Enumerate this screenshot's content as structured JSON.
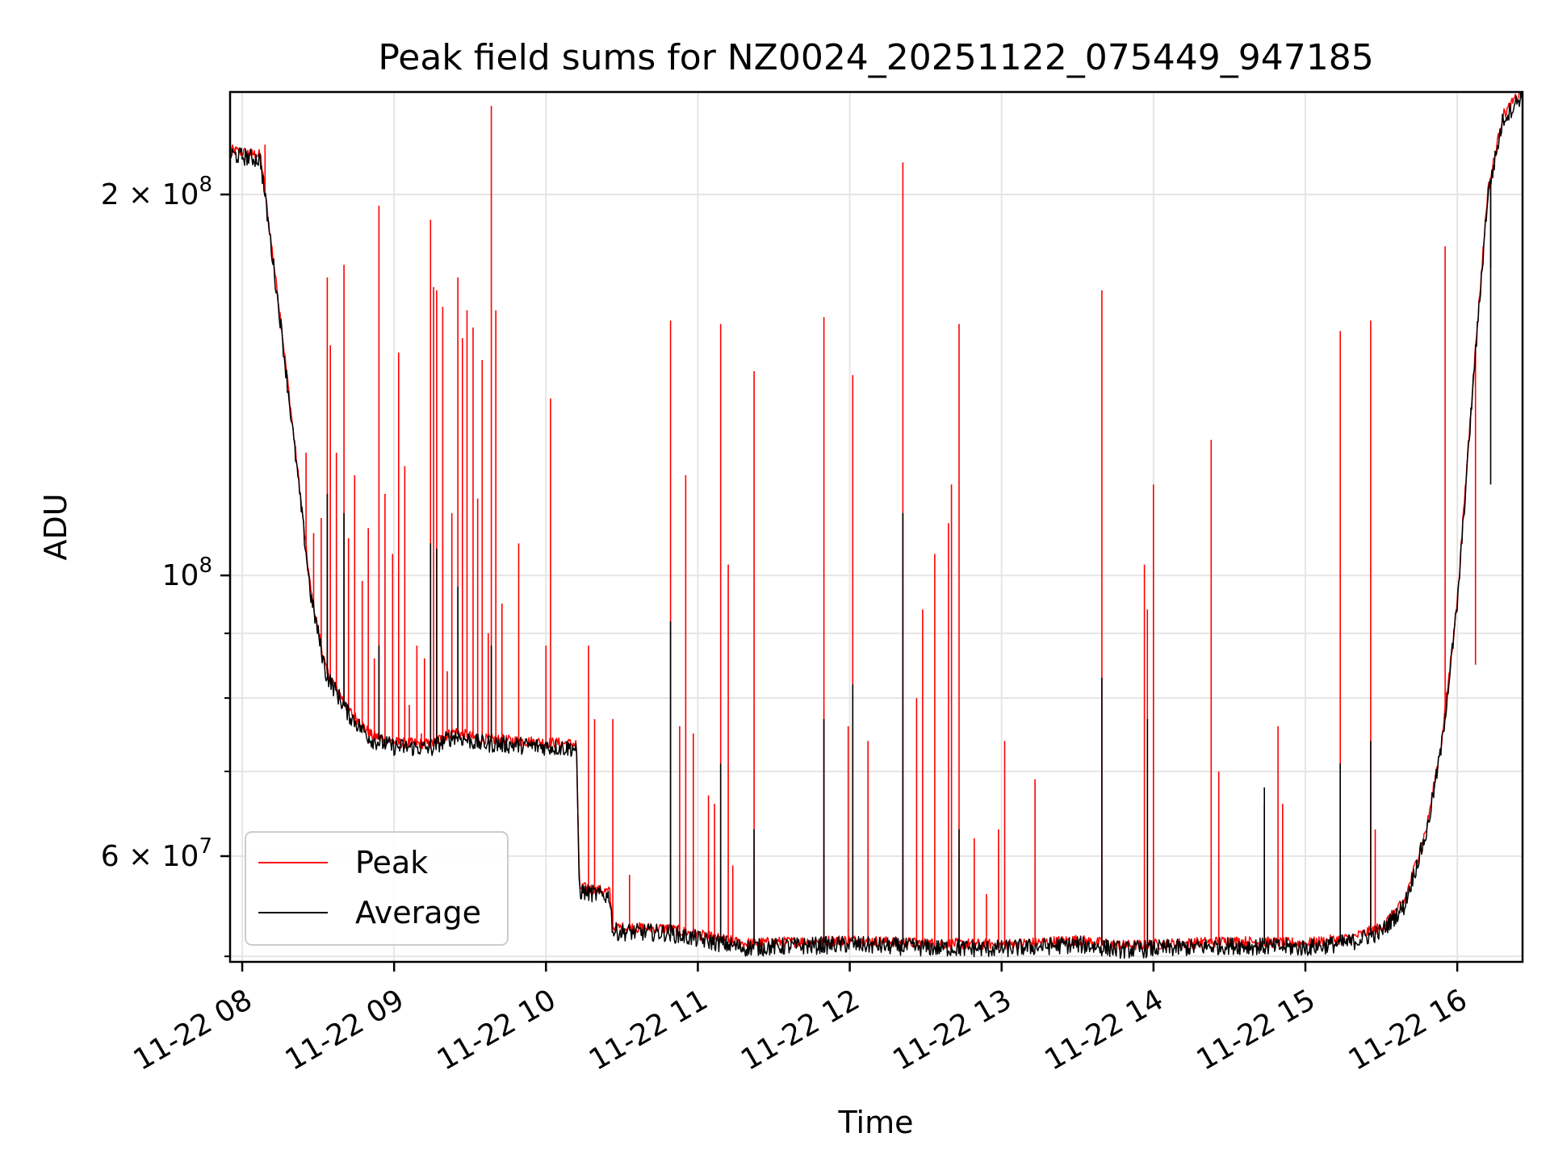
{
  "chart_data": {
    "type": "line",
    "title": "Peak field sums for NZ0024_20251122_075449_947185",
    "xlabel": "Time",
    "ylabel": "ADU",
    "yscale": "log",
    "xlim": [
      7.92,
      16.43
    ],
    "ylim": [
      49500000,
      241000000
    ],
    "grid": true,
    "legend": "lower-left",
    "x_ticks": [
      {
        "value": 8,
        "label": "11-22 08"
      },
      {
        "value": 9,
        "label": "11-22 09"
      },
      {
        "value": 10,
        "label": "11-22 10"
      },
      {
        "value": 11,
        "label": "11-22 11"
      },
      {
        "value": 12,
        "label": "11-22 12"
      },
      {
        "value": 13,
        "label": "11-22 13"
      },
      {
        "value": 14,
        "label": "11-22 14"
      },
      {
        "value": 15,
        "label": "11-22 15"
      },
      {
        "value": 16,
        "label": "11-22 16"
      }
    ],
    "y_ticks": [
      {
        "value": 60000000,
        "mantissa": "6",
        "exp": "7"
      },
      {
        "value": 100000000,
        "mantissa": "",
        "exp": "8"
      },
      {
        "value": 200000000,
        "mantissa": "2",
        "exp": "8"
      }
    ],
    "y_minor_ticks": [
      50000000,
      70000000,
      80000000,
      90000000
    ],
    "baseline": [
      [
        7.92,
        216000000
      ],
      [
        8.12,
        214000000
      ],
      [
        8.15,
        200000000
      ],
      [
        8.25,
        160000000
      ],
      [
        8.35,
        125000000
      ],
      [
        8.45,
        97000000
      ],
      [
        8.55,
        84000000
      ],
      [
        8.7,
        78000000
      ],
      [
        8.85,
        74500000
      ],
      [
        9.0,
        73500000
      ],
      [
        9.25,
        73300000
      ],
      [
        9.3,
        74000000
      ],
      [
        9.4,
        75000000
      ],
      [
        9.55,
        74000000
      ],
      [
        10.2,
        73300000
      ],
      [
        10.22,
        56500000
      ],
      [
        10.42,
        56000000
      ],
      [
        10.44,
        52500000
      ],
      [
        10.8,
        52400000
      ],
      [
        11.0,
        51800000
      ],
      [
        11.3,
        51000000
      ],
      [
        12.0,
        51300000
      ],
      [
        12.5,
        51000000
      ],
      [
        13.0,
        50900000
      ],
      [
        13.5,
        51300000
      ],
      [
        13.8,
        50800000
      ],
      [
        14.2,
        51000000
      ],
      [
        14.5,
        51200000
      ],
      [
        15.0,
        51000000
      ],
      [
        15.3,
        51500000
      ],
      [
        15.5,
        52500000
      ],
      [
        15.65,
        55000000
      ],
      [
        15.8,
        63000000
      ],
      [
        15.9,
        74000000
      ],
      [
        16.0,
        95000000
      ],
      [
        16.1,
        140000000
      ],
      [
        16.2,
        200000000
      ],
      [
        16.3,
        230000000
      ],
      [
        16.43,
        241000000
      ]
    ],
    "series": [
      {
        "name": "Peak",
        "color": "#ff0000",
        "spikes": [
          [
            8.15,
            219000000
          ],
          [
            8.42,
            125000000
          ],
          [
            8.47,
            108000000
          ],
          [
            8.52,
            111000000
          ],
          [
            8.56,
            172000000
          ],
          [
            8.58,
            152000000
          ],
          [
            8.62,
            125000000
          ],
          [
            8.67,
            176000000
          ],
          [
            8.7,
            107000000
          ],
          [
            8.74,
            120000000
          ],
          [
            8.79,
            99000000
          ],
          [
            8.83,
            109000000
          ],
          [
            8.87,
            86000000
          ],
          [
            8.9,
            196000000
          ],
          [
            8.94,
            116000000
          ],
          [
            8.99,
            104000000
          ],
          [
            9.03,
            150000000
          ],
          [
            9.07,
            122000000
          ],
          [
            9.1,
            79000000
          ],
          [
            9.15,
            88000000
          ],
          [
            9.18,
            75000000
          ],
          [
            9.2,
            86000000
          ],
          [
            9.24,
            191000000
          ],
          [
            9.26,
            169000000
          ],
          [
            9.28,
            168000000
          ],
          [
            9.32,
            163000000
          ],
          [
            9.35,
            84000000
          ],
          [
            9.38,
            112000000
          ],
          [
            9.42,
            172000000
          ],
          [
            9.45,
            154000000
          ],
          [
            9.48,
            162000000
          ],
          [
            9.52,
            157000000
          ],
          [
            9.55,
            115000000
          ],
          [
            9.58,
            148000000
          ],
          [
            9.62,
            90000000
          ],
          [
            9.64,
            235000000
          ],
          [
            9.67,
            162000000
          ],
          [
            9.71,
            95000000
          ],
          [
            9.82,
            106000000
          ],
          [
            10.0,
            88000000
          ],
          [
            10.03,
            138000000
          ],
          [
            10.28,
            88000000
          ],
          [
            10.32,
            77000000
          ],
          [
            10.44,
            77000000
          ],
          [
            10.55,
            58000000
          ],
          [
            10.82,
            159000000
          ],
          [
            10.88,
            76000000
          ],
          [
            10.92,
            120000000
          ],
          [
            10.97,
            75000000
          ],
          [
            11.07,
            67000000
          ],
          [
            11.11,
            66000000
          ],
          [
            11.15,
            158000000
          ],
          [
            11.2,
            102000000
          ],
          [
            11.23,
            59000000
          ],
          [
            11.37,
            145000000
          ],
          [
            11.83,
            160000000
          ],
          [
            11.99,
            76000000
          ],
          [
            12.02,
            144000000
          ],
          [
            12.12,
            74000000
          ],
          [
            12.35,
            212000000
          ],
          [
            12.44,
            80000000
          ],
          [
            12.48,
            94000000
          ],
          [
            12.56,
            104000000
          ],
          [
            12.65,
            110000000
          ],
          [
            12.67,
            118000000
          ],
          [
            12.72,
            158000000
          ],
          [
            12.82,
            62000000
          ],
          [
            12.9,
            56000000
          ],
          [
            12.98,
            63000000
          ],
          [
            13.02,
            74000000
          ],
          [
            13.22,
            69000000
          ],
          [
            13.66,
            168000000
          ],
          [
            13.94,
            102000000
          ],
          [
            13.96,
            94000000
          ],
          [
            14.0,
            118000000
          ],
          [
            14.38,
            128000000
          ],
          [
            14.43,
            70000000
          ],
          [
            14.73,
            66000000
          ],
          [
            14.82,
            76000000
          ],
          [
            14.85,
            66000000
          ],
          [
            15.23,
            156000000
          ],
          [
            15.43,
            159000000
          ],
          [
            15.46,
            63000000
          ],
          [
            15.92,
            182000000
          ],
          [
            16.12,
            85000000
          ],
          [
            16.22,
            175000000
          ]
        ]
      },
      {
        "name": "Average",
        "color": "#000000",
        "spikes": [
          [
            8.56,
            116000000
          ],
          [
            8.67,
            112000000
          ],
          [
            8.9,
            88000000
          ],
          [
            9.24,
            106000000
          ],
          [
            9.28,
            105000000
          ],
          [
            9.42,
            98000000
          ],
          [
            9.64,
            88000000
          ],
          [
            10.82,
            92000000
          ],
          [
            11.15,
            71000000
          ],
          [
            11.37,
            63000000
          ],
          [
            11.83,
            77000000
          ],
          [
            12.02,
            82000000
          ],
          [
            12.35,
            112000000
          ],
          [
            12.72,
            63000000
          ],
          [
            13.66,
            83000000
          ],
          [
            13.96,
            77000000
          ],
          [
            14.73,
            68000000
          ],
          [
            15.23,
            71000000
          ],
          [
            15.43,
            74000000
          ],
          [
            15.92,
            77000000
          ],
          [
            16.22,
            118000000
          ]
        ]
      }
    ]
  }
}
